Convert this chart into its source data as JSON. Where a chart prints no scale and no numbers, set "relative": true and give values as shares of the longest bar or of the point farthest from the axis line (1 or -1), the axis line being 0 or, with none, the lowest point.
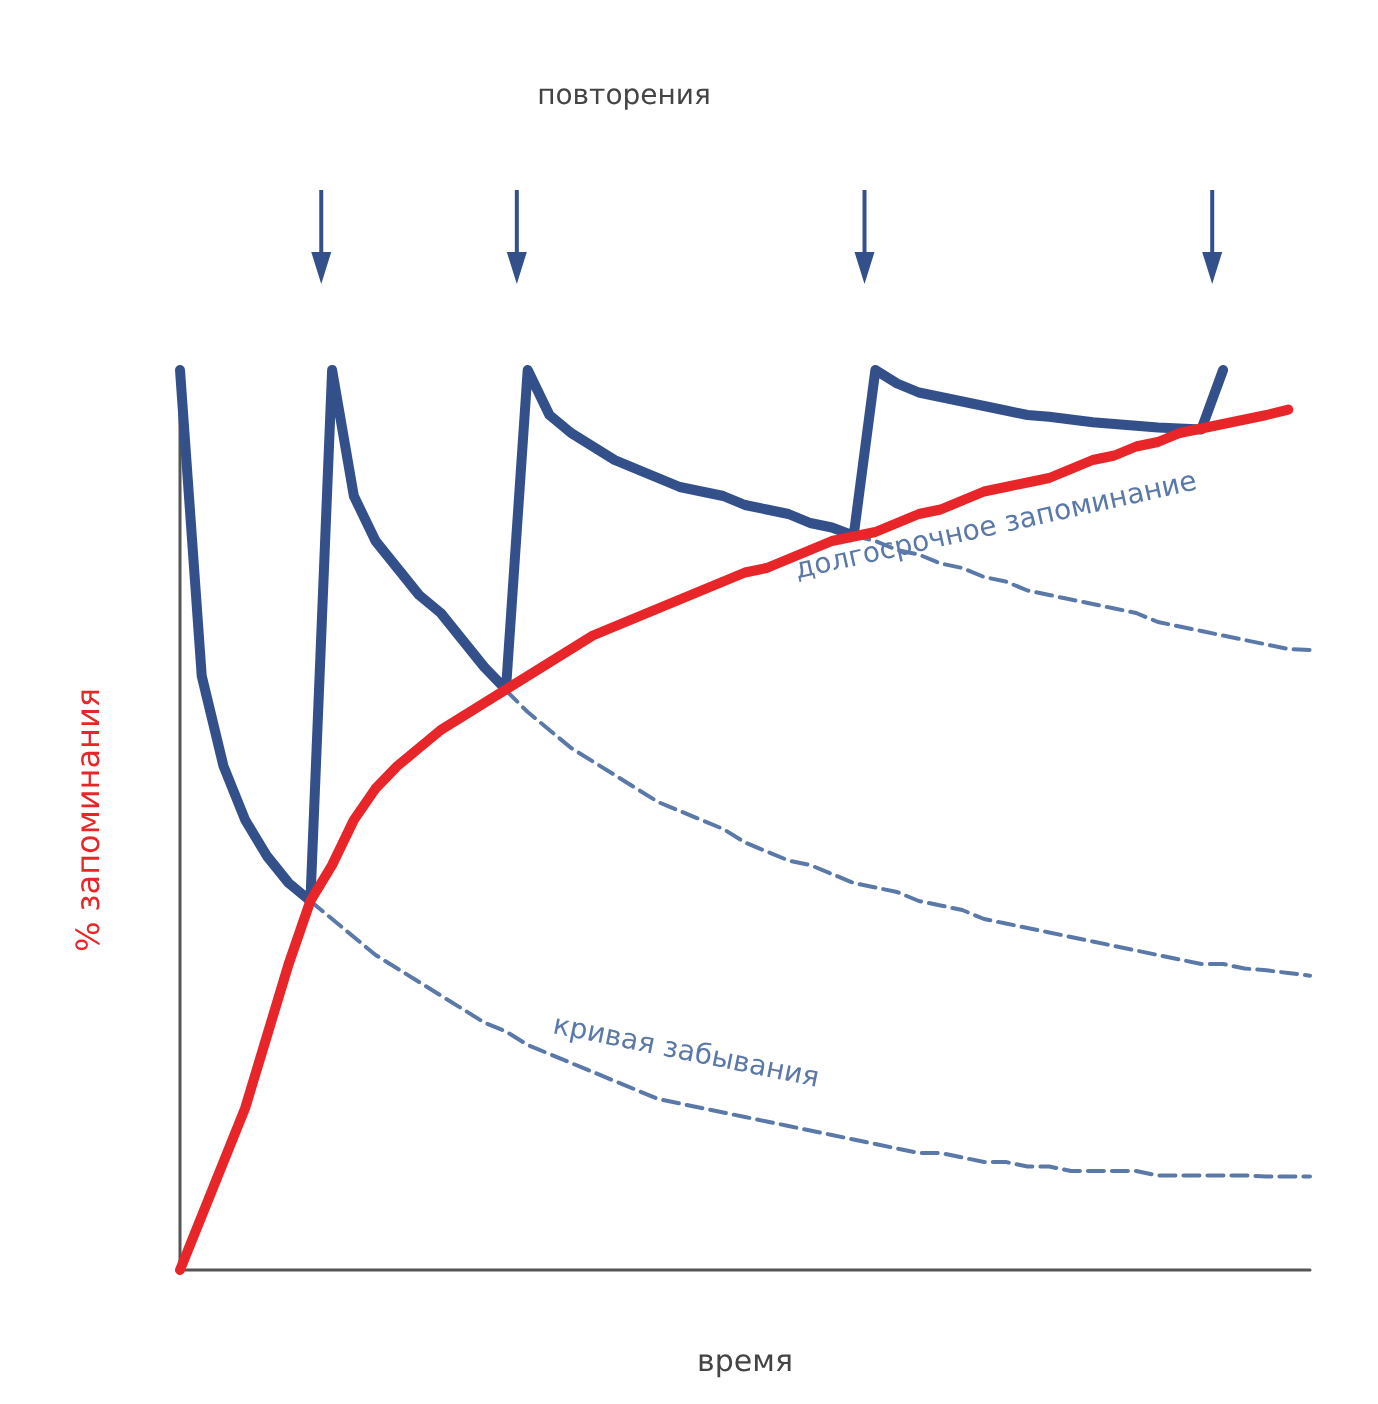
{
  "chart_data": {
    "type": "line",
    "relative": true,
    "xlabel": "время",
    "ylabel": "% запоминания",
    "annotations": [
      "повторения",
      "долгосрочное запоминание",
      "кривая забывания"
    ],
    "grid": false,
    "marker": "none",
    "categories": [
      null,
      null,
      null,
      null,
      null,
      null,
      null,
      null,
      null,
      null,
      null,
      null,
      null,
      null,
      null,
      null,
      null,
      null,
      null,
      null,
      null,
      null,
      null,
      null,
      null,
      null,
      null,
      null,
      null,
      null,
      null,
      null,
      null,
      null,
      null,
      null,
      null,
      null,
      null,
      null,
      null,
      null,
      null,
      null,
      null,
      null,
      null,
      null,
      null,
      null,
      null,
      null,
      null
    ],
    "series": [
      {
        "color": "#5a78a8",
        "line_style": "dashed",
        "values": [
          null,
          null,
          null,
          null,
          null,
          null,
          0.41,
          0.39,
          0.37,
          0.35,
          0.335,
          0.32,
          0.305,
          0.29,
          0.275,
          0.265,
          0.25,
          0.24,
          0.23,
          0.22,
          0.21,
          0.2,
          0.19,
          0.185,
          0.18,
          0.175,
          0.17,
          0.165,
          0.16,
          0.155,
          0.15,
          0.145,
          0.14,
          0.135,
          0.13,
          0.13,
          0.125,
          0.12,
          0.12,
          0.115,
          0.115,
          0.11,
          0.11,
          0.11,
          0.11,
          0.105,
          0.105,
          0.105,
          0.105,
          0.105,
          0.104,
          0.104,
          0.104
        ]
      },
      {
        "color": "#5a78a8",
        "line_style": "dashed",
        "values": [
          null,
          null,
          null,
          null,
          null,
          null,
          null,
          null,
          null,
          null,
          null,
          null,
          null,
          null,
          null,
          0.644,
          0.62,
          0.6,
          0.58,
          0.565,
          0.55,
          0.535,
          0.52,
          0.51,
          0.5,
          0.49,
          0.475,
          0.465,
          0.455,
          0.45,
          0.44,
          0.43,
          0.425,
          0.42,
          0.41,
          0.405,
          0.4,
          0.39,
          0.385,
          0.38,
          0.375,
          0.37,
          0.365,
          0.36,
          0.355,
          0.35,
          0.345,
          0.34,
          0.34,
          0.335,
          0.333,
          0.33,
          0.327
        ]
      },
      {
        "color": "#5a78a8",
        "line_style": "dashed",
        "values": [
          null,
          null,
          null,
          null,
          null,
          null,
          null,
          null,
          null,
          null,
          null,
          null,
          null,
          null,
          null,
          null,
          null,
          null,
          null,
          null,
          null,
          null,
          null,
          null,
          null,
          null,
          null,
          null,
          null,
          null,
          null,
          0.816,
          0.81,
          0.8,
          0.795,
          0.785,
          0.78,
          0.77,
          0.765,
          0.755,
          0.75,
          0.745,
          0.74,
          0.735,
          0.73,
          0.72,
          0.715,
          0.71,
          0.705,
          0.7,
          0.695,
          0.69,
          0.689
        ]
      },
      {
        "color": "#34508a",
        "line_style": "solid",
        "values": [
          1,
          0.66,
          0.56,
          0.5,
          0.46,
          0.43,
          0.41,
          1,
          0.86,
          0.81,
          0.78,
          0.75,
          0.73,
          0.7,
          0.67,
          0.645,
          1,
          0.95,
          0.93,
          0.915,
          0.9,
          0.89,
          0.88,
          0.87,
          0.865,
          0.86,
          0.85,
          0.845,
          0.84,
          0.83,
          0.825,
          0.816,
          1,
          0.985,
          0.975,
          0.97,
          0.965,
          0.96,
          0.955,
          0.95,
          0.948,
          0.945,
          0.942,
          0.94,
          0.938,
          0.936,
          0.935,
          0.934,
          1,
          null,
          null,
          null,
          null
        ]
      },
      {
        "color": "#e8262a",
        "line_style": "solid",
        "values": [
          0,
          0.06,
          0.12,
          0.18,
          0.26,
          0.34,
          0.41,
          0.45,
          0.5,
          0.535,
          0.56,
          0.58,
          0.6,
          0.615,
          0.63,
          0.645,
          0.66,
          0.675,
          0.69,
          0.705,
          0.715,
          0.725,
          0.735,
          0.745,
          0.755,
          0.765,
          0.775,
          0.78,
          0.79,
          0.8,
          0.81,
          0.815,
          0.82,
          0.83,
          0.84,
          0.845,
          0.855,
          0.865,
          0.87,
          0.875,
          0.88,
          0.89,
          0.9,
          0.905,
          0.915,
          0.92,
          0.93,
          0.935,
          0.94,
          0.945,
          0.95,
          0.956,
          null
        ]
      }
    ]
  }
}
